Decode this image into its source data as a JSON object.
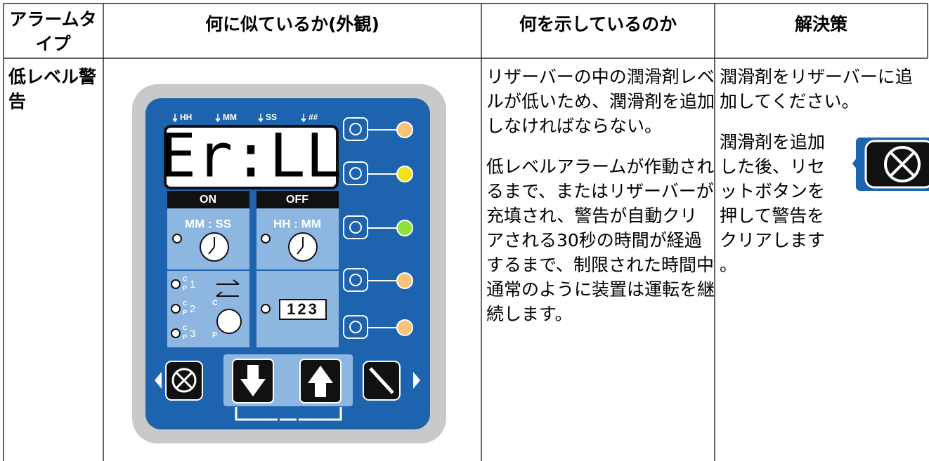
{
  "table": {
    "headers": [
      "アラームタイプ",
      "何に似ているか(外観)",
      "何を示しているのか",
      "解決策"
    ],
    "rows": [
      {
        "alarm_type": "低レベル警告",
        "meaning": [
          "リザーバーの中の潤滑剤レベルが低いため、潤滑剤を追加しなければならない。",
          "低レベルアラームが作動されるまで、またはリザーバーが充填され、警告が自動クリアされる30秒の時間が経過するまで、制限された時間中通常のように装置は運転を継続します。"
        ],
        "solution": [
          "潤滑剤をリザーバーに追加してください。",
          "潤滑剤を追加した後、リセットボタンを押して警告をクリアします。"
        ]
      }
    ]
  },
  "panel": {
    "display_labels": [
      "HH",
      "MM",
      "SS",
      "##"
    ],
    "display": "Er:LL",
    "on": "ON",
    "off": "OFF",
    "on_format": "MM : SS",
    "off_format": "HH : MM",
    "modes": [
      "1",
      "2",
      "3"
    ],
    "c": "C",
    "p": "P",
    "counter": "123"
  }
}
